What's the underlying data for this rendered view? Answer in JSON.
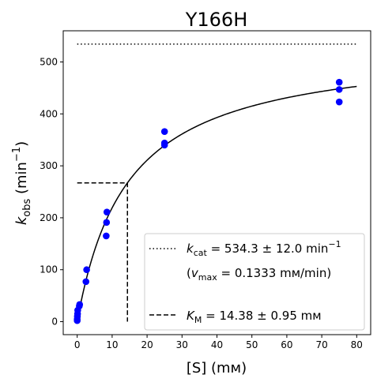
{
  "chart_data": {
    "type": "scatter",
    "title": "Y166H",
    "xlabel": "[S] (mм)",
    "ylabel": {
      "main": "k",
      "sub": "obs",
      "unit_pre": " (min",
      "unit_sup": "−1",
      "unit_post": ")"
    },
    "xlim": [
      -4,
      84
    ],
    "ylim": [
      -25,
      560
    ],
    "xticks": [
      0,
      10,
      20,
      30,
      40,
      50,
      60,
      70,
      80
    ],
    "yticks": [
      0,
      100,
      200,
      300,
      400,
      500
    ],
    "grid": false,
    "scatter_color": "#0000ff",
    "points": [
      {
        "x": 0,
        "y": 2
      },
      {
        "x": 0,
        "y": 5
      },
      {
        "x": 0.05,
        "y": 10
      },
      {
        "x": 0.1,
        "y": 15
      },
      {
        "x": 0.15,
        "y": 22
      },
      {
        "x": 0.6,
        "y": 30
      },
      {
        "x": 0.7,
        "y": 33
      },
      {
        "x": 2.5,
        "y": 77
      },
      {
        "x": 2.7,
        "y": 100
      },
      {
        "x": 8.3,
        "y": 165
      },
      {
        "x": 8.4,
        "y": 191
      },
      {
        "x": 8.5,
        "y": 211
      },
      {
        "x": 25,
        "y": 340
      },
      {
        "x": 25,
        "y": 344
      },
      {
        "x": 25,
        "y": 366
      },
      {
        "x": 75,
        "y": 423
      },
      {
        "x": 75,
        "y": 447
      },
      {
        "x": 75,
        "y": 461
      }
    ],
    "fit": {
      "kcat": 534.3,
      "km": 14.38,
      "x_range": [
        0,
        80
      ]
    },
    "kcat_line": {
      "y": 534.3,
      "x_range": [
        0,
        80
      ]
    },
    "km_line": {
      "x": 14.38,
      "y": 267.15
    },
    "legend": {
      "placement": "lower-right",
      "kcat": {
        "main": "k",
        "sub": "cat",
        "text": " = 534.3 ± 12.0 min",
        "sup": "−1"
      },
      "vmax": {
        "open": "(",
        "main": "v",
        "sub": "max",
        "text": " = 0.1333 mм/min)"
      },
      "km": {
        "main": "K",
        "sub": "M",
        "text": " = 14.38 ± 0.95 mм"
      }
    }
  }
}
